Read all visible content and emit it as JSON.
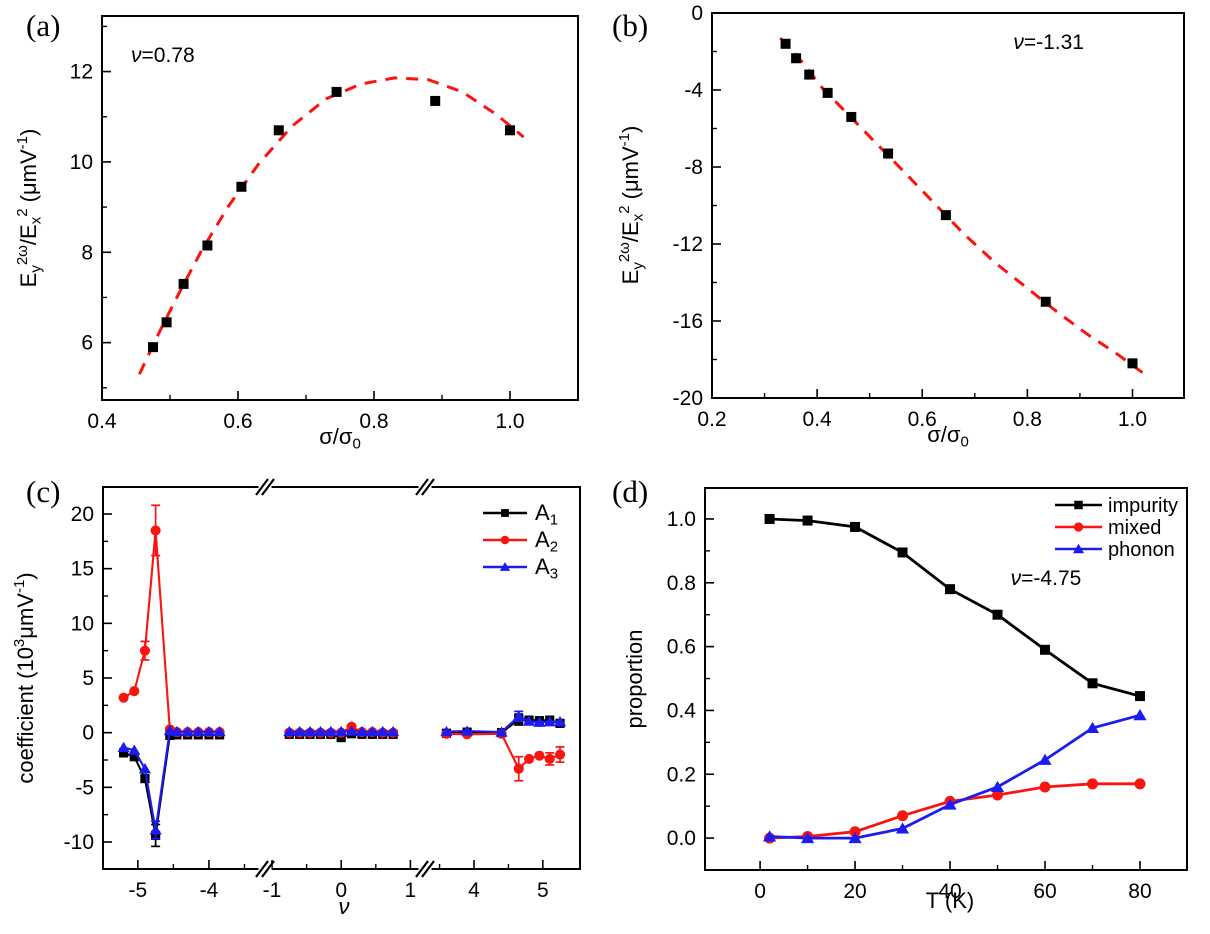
{
  "figure": {
    "background": "#ffffff"
  },
  "colors": {
    "black": "#000000",
    "red": "#fa1410",
    "blue": "#1c1cf0",
    "frame": "#000000"
  },
  "chart_data": [
    {
      "panel_label": "(a)",
      "type": "scatter",
      "annotation": "ν=0.78",
      "xlabel": "σ/σ0",
      "xlabel_rich": [
        [
          "n",
          "σ/σ"
        ],
        [
          "d",
          "0"
        ]
      ],
      "ylabel": "Ey2ω/Ex2 (μmV-1)",
      "ylabel_rich": [
        [
          "n",
          "E"
        ],
        [
          "d",
          "y"
        ],
        [
          "u",
          "2ω"
        ],
        [
          "n",
          "/E"
        ],
        [
          "d",
          "x"
        ],
        [
          "u",
          "2"
        ],
        [
          "n",
          " (μmV"
        ],
        [
          "u",
          "-1"
        ],
        [
          "n",
          ")"
        ]
      ],
      "x_axis": {
        "range": [
          0.4,
          1.1
        ],
        "majors": [
          0.4,
          0.6,
          0.8,
          1.0
        ],
        "labels": [
          "0.4",
          "0.6",
          "0.8",
          "1.0"
        ],
        "minors": [
          0.5,
          0.7,
          0.9
        ]
      },
      "y_axis": {
        "range": [
          4.73,
          13.23
        ],
        "majors": [
          6,
          8,
          10,
          12
        ],
        "labels": [
          "6",
          "8",
          "10",
          "12"
        ],
        "minors": [
          5,
          7,
          9,
          11,
          13
        ]
      },
      "points": {
        "marker": "square",
        "color": "black",
        "x": [
          0.475,
          0.495,
          0.52,
          0.555,
          0.605,
          0.66,
          0.745,
          0.89,
          1.0
        ],
        "y": [
          5.9,
          6.45,
          7.3,
          8.15,
          9.45,
          10.7,
          11.55,
          11.35,
          10.7
        ]
      },
      "fit": {
        "style": "dashed",
        "color": "red",
        "x": [
          0.455,
          0.48,
          0.51,
          0.545,
          0.585,
          0.63,
          0.68,
          0.73,
          0.78,
          0.83,
          0.88,
          0.93,
          0.98,
          1.02
        ],
        "y": [
          5.3,
          6.1,
          7.0,
          8.0,
          9.0,
          9.95,
          10.8,
          11.4,
          11.72,
          11.86,
          11.82,
          11.55,
          11.05,
          10.55
        ]
      }
    },
    {
      "panel_label": "(b)",
      "type": "scatter",
      "annotation": "ν=-1.31",
      "xlabel": "σ/σ0",
      "xlabel_rich": [
        [
          "n",
          "σ/σ"
        ],
        [
          "d",
          "0"
        ]
      ],
      "ylabel": "Ey2ω/Ex2 (μmV-1)",
      "ylabel_rich": [
        [
          "n",
          "E"
        ],
        [
          "d",
          "y"
        ],
        [
          "u",
          "2ω"
        ],
        [
          "n",
          "/E"
        ],
        [
          "d",
          "x"
        ],
        [
          "u",
          "2"
        ],
        [
          "n",
          " (μmV"
        ],
        [
          "u",
          "-1"
        ],
        [
          "n",
          ")"
        ]
      ],
      "x_axis": {
        "range": [
          0.2,
          1.098
        ],
        "majors": [
          0.2,
          0.4,
          0.6,
          0.8,
          1.0
        ],
        "labels": [
          "0.2",
          "0.4",
          "0.6",
          "0.8",
          "1.0"
        ],
        "minors": [
          0.3,
          0.5,
          0.7,
          0.9
        ]
      },
      "y_axis": {
        "range": [
          -20,
          0
        ],
        "majors": [
          0,
          -4,
          -8,
          -12,
          -16,
          -20
        ],
        "labels": [
          "0",
          "-4",
          "-8",
          "-12",
          "-16",
          "-20"
        ],
        "minors": [
          -2,
          -6,
          -10,
          -14,
          -18
        ]
      },
      "points": {
        "marker": "square",
        "color": "black",
        "x": [
          0.34,
          0.36,
          0.385,
          0.42,
          0.465,
          0.535,
          0.645,
          0.835,
          1.0
        ],
        "y": [
          -1.6,
          -2.35,
          -3.2,
          -4.15,
          -5.4,
          -7.3,
          -10.5,
          -15.0,
          -18.2
        ]
      },
      "fit": {
        "style": "dashed",
        "color": "red",
        "x": [
          0.33,
          0.37,
          0.41,
          0.46,
          0.51,
          0.56,
          0.62,
          0.68,
          0.74,
          0.8,
          0.86,
          0.92,
          0.97,
          1.02
        ],
        "y": [
          -1.3,
          -2.5,
          -3.9,
          -5.3,
          -6.7,
          -8.1,
          -9.8,
          -11.5,
          -13.0,
          -14.3,
          -15.6,
          -16.8,
          -17.7,
          -18.7
        ]
      }
    },
    {
      "panel_label": "(c)",
      "type": "line",
      "xlabel": "ν",
      "xlabel_rich": [
        [
          "i",
          "ν"
        ]
      ],
      "ylabel": "coefficient (103μmV-1)",
      "ylabel_rich": [
        [
          "n",
          "coefficient (10"
        ],
        [
          "u",
          "3"
        ],
        [
          "n",
          "μmV"
        ],
        [
          "u",
          "-1"
        ],
        [
          "n",
          ")"
        ]
      ],
      "x_axis": {
        "segments": [
          {
            "range": [
              -5.49,
              -3.31
            ],
            "majors": [
              -5,
              -4
            ],
            "labels": [
              "-5",
              "-4"
            ],
            "minors": [
              -4.5,
              -3.5
            ]
          },
          {
            "range": [
              -1.0,
              1.11
            ],
            "majors": [
              -1,
              0,
              1
            ],
            "labels": [
              "-1",
              "0",
              "1"
            ],
            "minors": [
              -0.5,
              0.5
            ]
          },
          {
            "range": [
              3.39,
              5.54
            ],
            "majors": [
              4,
              5
            ],
            "labels": [
              "4",
              "5"
            ],
            "minors": [
              3.5,
              4.5
            ]
          }
        ]
      },
      "y_axis": {
        "range": [
          -12.47,
          22.47
        ],
        "majors": [
          -10,
          -5,
          0,
          5,
          10,
          15,
          20
        ],
        "labels": [
          "-10",
          "-5",
          "0",
          "5",
          "10",
          "15",
          "20"
        ],
        "minors": [
          -7.5,
          -2.5,
          2.5,
          7.5,
          12.5,
          17.5
        ]
      },
      "series": [
        {
          "name": "A1",
          "name_rich": [
            [
              "n",
              "A"
            ],
            [
              "d",
              "1"
            ]
          ],
          "color": "black",
          "marker": "square",
          "line": true,
          "groups": [
            {
              "x": [
                -5.2,
                -5.05,
                -4.9,
                -4.75,
                -4.55,
                -4.45,
                -4.3,
                -4.15,
                -4.0,
                -3.85
              ],
              "y": [
                -1.85,
                -2.2,
                -4.2,
                -9.4,
                -0.25,
                -0.2,
                -0.2,
                -0.2,
                -0.2,
                -0.2
              ],
              "err": [
                0,
                0,
                0,
                1.0,
                0,
                0,
                0,
                0,
                0,
                0
              ]
            },
            {
              "x": [
                -0.75,
                -0.6,
                -0.45,
                -0.3,
                -0.15,
                0,
                0.15,
                0.3,
                0.45,
                0.6,
                0.75
              ],
              "y": [
                -0.15,
                -0.15,
                -0.15,
                -0.15,
                -0.15,
                -0.45,
                -0.1,
                -0.15,
                -0.15,
                -0.15,
                -0.15
              ]
            },
            {
              "x": [
                3.6,
                3.9,
                4.4,
                4.65,
                4.8,
                4.95,
                5.1,
                5.25
              ],
              "y": [
                -0.05,
                0.05,
                0.0,
                1.2,
                1.15,
                1.1,
                1.15,
                0.85
              ],
              "err": [
                0,
                0,
                0,
                0.5,
                0,
                0,
                0,
                0
              ]
            }
          ]
        },
        {
          "name": "A2",
          "name_rich": [
            [
              "n",
              "A"
            ],
            [
              "d",
              "2"
            ]
          ],
          "color": "red",
          "marker": "circle",
          "line": true,
          "groups": [
            {
              "x": [
                -5.2,
                -5.05,
                -4.9,
                -4.75,
                -4.55,
                -4.45,
                -4.3,
                -4.15,
                -4.0,
                -3.85
              ],
              "y": [
                3.2,
                3.8,
                7.5,
                18.5,
                0.3,
                0.05,
                0.05,
                0.05,
                0.05,
                0.05
              ],
              "err": [
                0,
                0,
                0.85,
                2.3,
                0,
                0,
                0,
                0,
                0,
                0
              ]
            },
            {
              "x": [
                -0.75,
                -0.6,
                -0.45,
                -0.3,
                -0.15,
                0,
                0.15,
                0.3,
                0.45,
                0.6,
                0.75
              ],
              "y": [
                0,
                0,
                0,
                0,
                0,
                0,
                0.55,
                0.05,
                0.05,
                0,
                0
              ]
            },
            {
              "x": [
                3.6,
                3.9,
                4.4,
                4.65,
                4.8,
                4.95,
                5.1,
                5.25
              ],
              "y": [
                -0.1,
                -0.15,
                -0.1,
                -3.3,
                -2.4,
                -2.1,
                -2.4,
                -2.0
              ],
              "err": [
                0,
                0,
                0,
                1.1,
                0,
                0,
                0.55,
                0.7
              ]
            }
          ]
        },
        {
          "name": "A3",
          "name_rich": [
            [
              "n",
              "A"
            ],
            [
              "d",
              "3"
            ]
          ],
          "color": "blue",
          "marker": "triangle",
          "line": true,
          "groups": [
            {
              "x": [
                -5.2,
                -5.05,
                -4.9,
                -4.75,
                -4.55,
                -4.45,
                -4.3,
                -4.15,
                -4.0,
                -3.85
              ],
              "y": [
                -1.35,
                -1.6,
                -3.3,
                -8.9,
                0.2,
                0.1,
                0.1,
                0.1,
                0.1,
                0.1
              ],
              "err": [
                0,
                0,
                0,
                0.8,
                0,
                0,
                0,
                0,
                0,
                0
              ]
            },
            {
              "x": [
                -0.75,
                -0.6,
                -0.45,
                -0.3,
                -0.15,
                0,
                0.15,
                0.3,
                0.45,
                0.6,
                0.75
              ],
              "y": [
                0.1,
                0.1,
                0.1,
                0.1,
                0.1,
                0.1,
                0.15,
                0.1,
                0.1,
                0.1,
                0.1
              ]
            },
            {
              "x": [
                3.6,
                3.9,
                4.4,
                4.65,
                4.8,
                4.95,
                5.1,
                5.25
              ],
              "y": [
                0.1,
                0.15,
                0.05,
                1.5,
                1.05,
                0.95,
                1.0,
                1.0
              ],
              "err": [
                0,
                0,
                0,
                0.45,
                0,
                0,
                0,
                0
              ]
            }
          ]
        }
      ]
    },
    {
      "panel_label": "(d)",
      "type": "line",
      "legend_note": "ν=-4.75",
      "xlabel": "T (K)",
      "xlabel_rich": [
        [
          "n",
          "T (K)"
        ]
      ],
      "ylabel": "proportion",
      "ylabel_rich": [
        [
          "n",
          "proportion"
        ]
      ],
      "x_axis": {
        "range": [
          -11.6,
          89.9
        ],
        "majors": [
          0,
          20,
          40,
          60,
          80
        ],
        "labels": [
          "0",
          "20",
          "40",
          "60",
          "80"
        ],
        "minors": [
          10,
          30,
          50,
          70
        ]
      },
      "y_axis": {
        "range": [
          -0.1,
          1.097
        ],
        "majors": [
          0.0,
          0.2,
          0.4,
          0.6,
          0.8,
          1.0
        ],
        "labels": [
          "0.0",
          "0.2",
          "0.4",
          "0.6",
          "0.8",
          "1.0"
        ],
        "minors": [
          0.1,
          0.3,
          0.5,
          0.7,
          0.9
        ]
      },
      "series": [
        {
          "name": "impurity",
          "color": "black",
          "marker": "square",
          "line": true,
          "groups": [
            {
              "x": [
                2,
                10,
                20,
                30,
                40,
                50,
                60,
                70,
                80
              ],
              "y": [
                1.0,
                0.995,
                0.975,
                0.895,
                0.78,
                0.7,
                0.59,
                0.485,
                0.445
              ]
            }
          ]
        },
        {
          "name": "mixed",
          "color": "red",
          "marker": "circle",
          "line": true,
          "groups": [
            {
              "x": [
                2,
                10,
                20,
                30,
                40,
                50,
                60,
                70,
                80
              ],
              "y": [
                0.0,
                0.005,
                0.02,
                0.07,
                0.115,
                0.135,
                0.16,
                0.17,
                0.17
              ]
            }
          ]
        },
        {
          "name": "phonon",
          "color": "blue",
          "marker": "triangle",
          "line": true,
          "groups": [
            {
              "x": [
                2,
                10,
                20,
                30,
                40,
                50,
                60,
                70,
                80
              ],
              "y": [
                0.005,
                0.0,
                0.0,
                0.03,
                0.105,
                0.16,
                0.245,
                0.345,
                0.385
              ]
            }
          ]
        }
      ]
    }
  ]
}
